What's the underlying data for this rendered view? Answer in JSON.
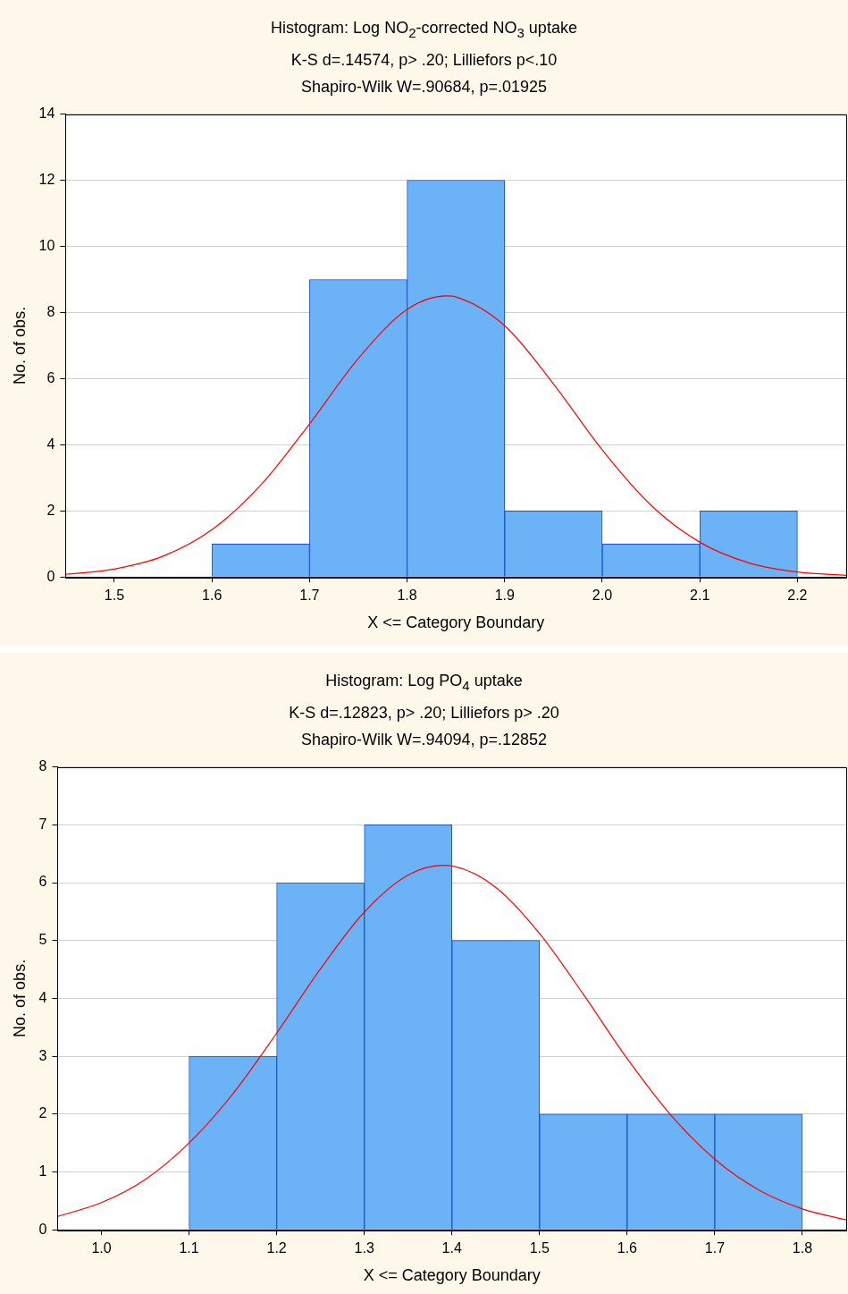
{
  "chart_data": [
    {
      "type": "histogram",
      "title": "Histogram: Log NO$_{2}$-corrected NO$_{3}$ uptake",
      "subtitle": "K-S d=.14574, p> .20; Lilliefors p<.10",
      "annotations": [
        "Shapiro-Wilk W=.90684, p=.01925"
      ],
      "xlabel": "X <= Category Boundary",
      "ylabel": "No. of obs.",
      "bins": [
        1.6,
        1.7,
        1.8,
        1.9,
        2.0,
        2.1,
        2.2
      ],
      "series": [
        {
          "color": "#6cb2f7",
          "values": [
            1,
            9,
            12,
            2,
            1,
            2
          ]
        },
        {
          "type": "line",
          "color": "#ff0000",
          "x": [
            1.45,
            1.5,
            1.55,
            1.6,
            1.65,
            1.7,
            1.75,
            1.8,
            1.84,
            1.85,
            1.9,
            1.95,
            2.0,
            2.05,
            2.1,
            2.15,
            2.2,
            2.25
          ],
          "values": [
            0.08,
            0.24,
            0.63,
            1.43,
            2.78,
            4.63,
            6.61,
            8.09,
            8.5,
            8.47,
            7.6,
            5.84,
            3.84,
            2.17,
            1.05,
            0.43,
            0.15,
            0.05
          ]
        }
      ],
      "xlim": [
        1.45,
        2.25
      ],
      "xticks": [
        1.5,
        {
          "value": 1.6,
          "label": "1.6"
        },
        1.7,
        1.8,
        1.9,
        {
          "value": 2.0,
          "label": "2.0"
        },
        2.1,
        2.2
      ],
      "ylim": [
        0,
        14
      ],
      "yticks": [
        0,
        2,
        4,
        6,
        8,
        10,
        12,
        14
      ],
      "grid": "y",
      "legend": false,
      "marker": "none"
    },
    {
      "type": "histogram",
      "title": "Histogram: Log PO$_{4}$ uptake",
      "subtitle": "K-S d=.12823, p> .20; Lilliefors p> .20",
      "annotations": [
        "Shapiro-Wilk W=.94094, p=.12852"
      ],
      "xlabel": "X <= Category Boundary",
      "ylabel": "No. of obs.",
      "bins": [
        1.1,
        1.2,
        1.3,
        1.4,
        1.5,
        1.6,
        1.7,
        1.8
      ],
      "series": [
        {
          "color": "#6cb2f7",
          "values": [
            3,
            6,
            7,
            5,
            2,
            2,
            2
          ]
        },
        {
          "type": "line",
          "color": "#ff0000",
          "x": [
            0.95,
            1.0,
            1.05,
            1.1,
            1.15,
            1.2,
            1.25,
            1.3,
            1.35,
            1.39,
            1.4,
            1.45,
            1.5,
            1.55,
            1.6,
            1.65,
            1.7,
            1.75,
            1.8,
            1.85
          ],
          "values": [
            0.23,
            0.47,
            0.87,
            1.5,
            2.35,
            3.4,
            4.51,
            5.49,
            6.13,
            6.3,
            6.29,
            5.92,
            5.12,
            4.07,
            2.96,
            1.98,
            1.22,
            0.69,
            0.36,
            0.17
          ]
        }
      ],
      "xlim": [
        0.95,
        1.85
      ],
      "xticks": [
        {
          "value": 1.0,
          "label": "1.0"
        },
        1.1,
        1.2,
        1.3,
        1.4,
        1.5,
        1.6,
        1.7,
        1.8
      ],
      "ylim": [
        0,
        8
      ],
      "yticks": [
        0,
        1,
        2,
        3,
        4,
        5,
        6,
        7,
        8
      ],
      "grid": "y",
      "legend": false,
      "marker": "none"
    }
  ]
}
